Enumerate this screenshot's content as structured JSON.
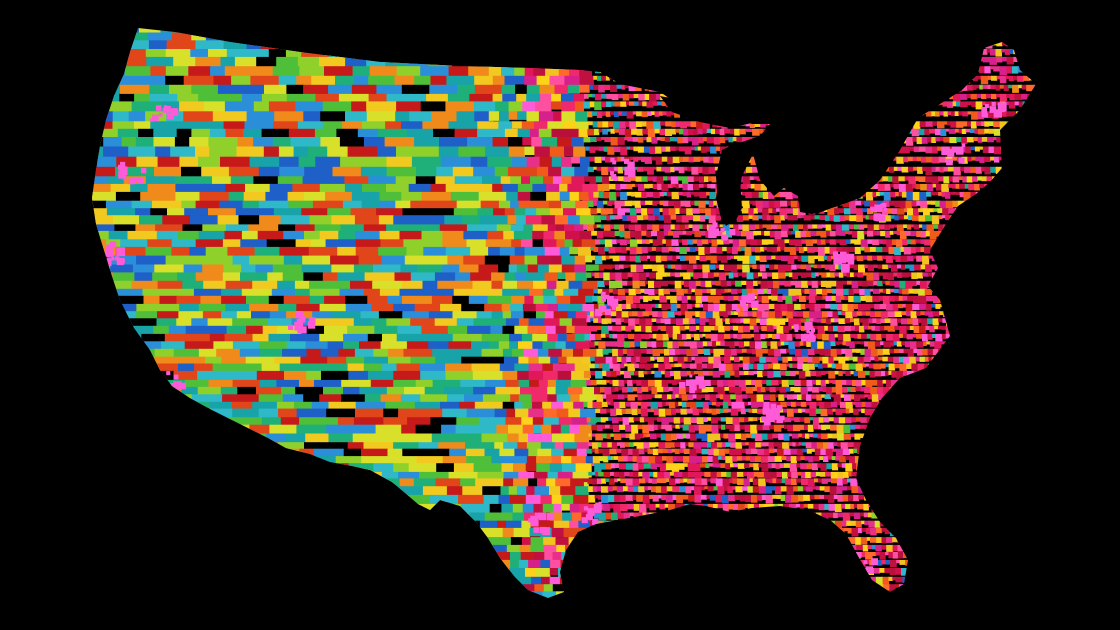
{
  "map": {
    "background_color": "#000000",
    "subject": "contiguous-united-states",
    "style": "dense-mosaic-of-small-colored-regions",
    "palette": {
      "west": [
        "#1f5fc8",
        "#2a8fd8",
        "#17a3a8",
        "#1fb07a",
        "#4fbf3a",
        "#8fd12a",
        "#d8e02a",
        "#f2c91f",
        "#f08a1a",
        "#e0461a",
        "#c61a1a",
        "#2fb8c8"
      ],
      "east": [
        "#e0185a",
        "#f02a6a",
        "#d0104a",
        "#ff4fa0",
        "#f05a1a",
        "#ffd21a",
        "#c01040",
        "#e8308a",
        "#ff6a2a",
        "#b8103a",
        "#f2c21f",
        "#d8208a"
      ],
      "urban_accent": "#ff5ad8",
      "void": "#000000"
    },
    "labels": []
  }
}
